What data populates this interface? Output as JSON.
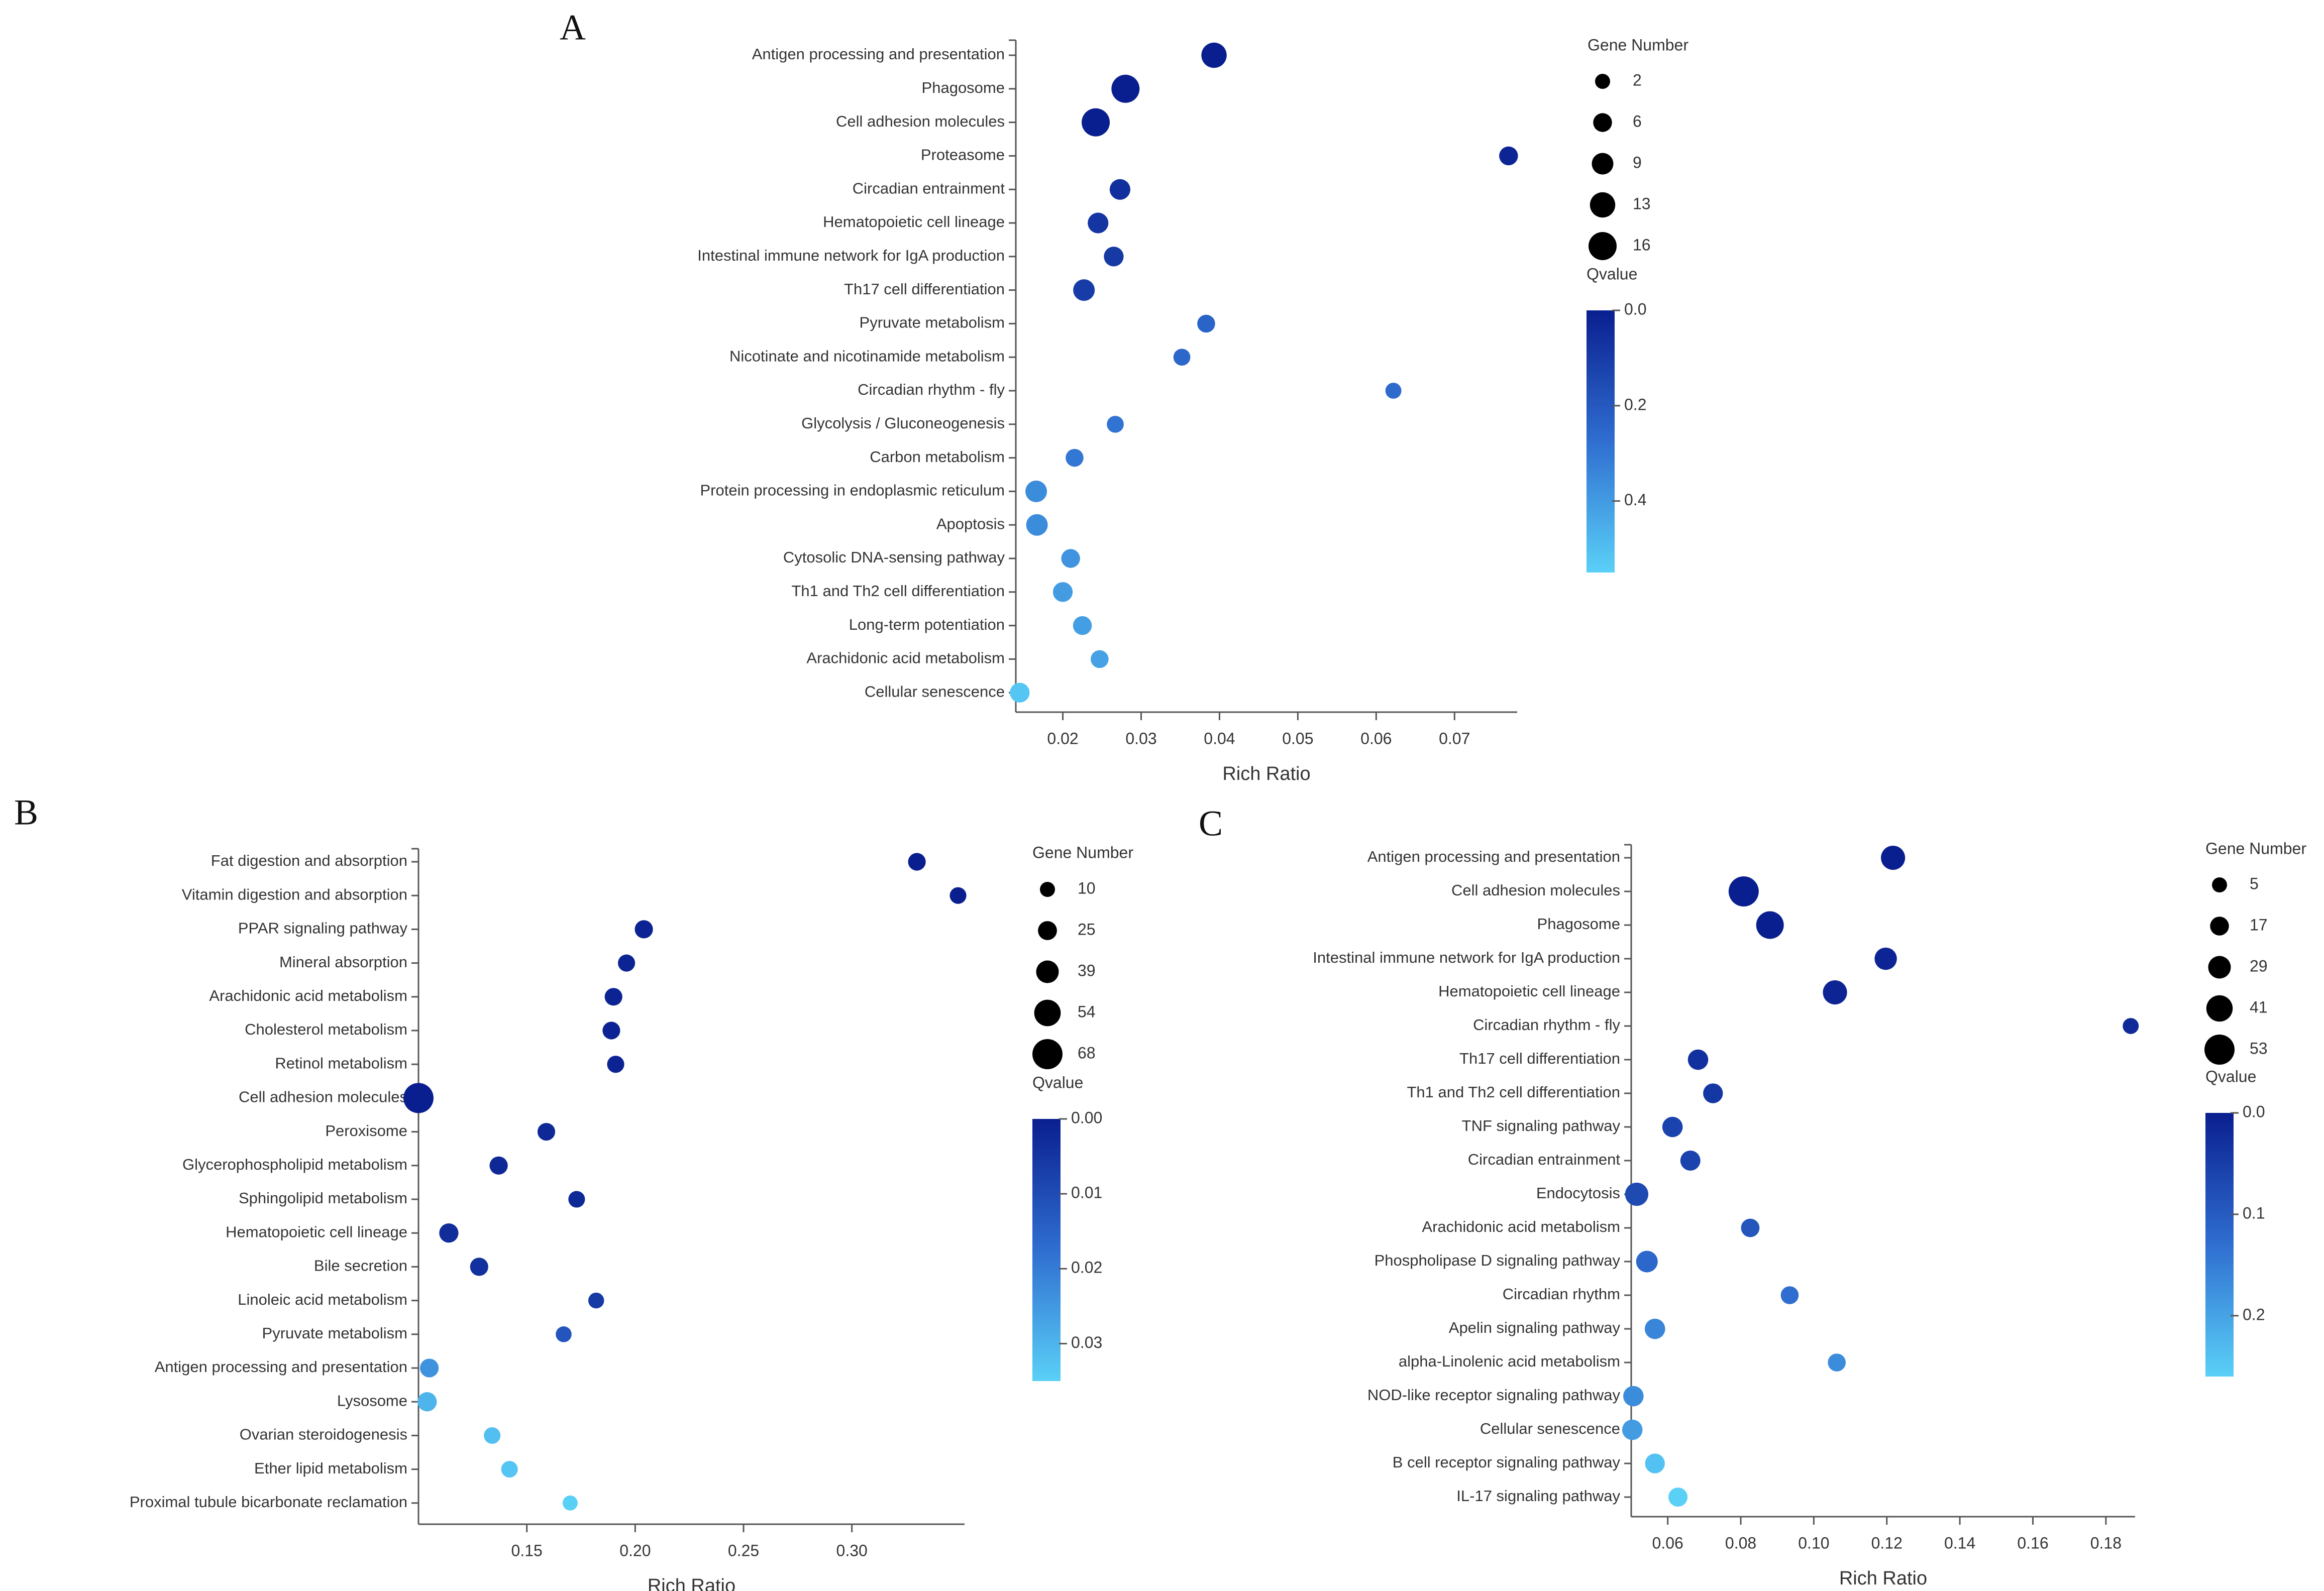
{
  "colors": {
    "low_q": "#0a1f8f",
    "mid_q": "#2f6ed0",
    "high_q": "#5ad0f7",
    "text": "#333333",
    "axis": "#555555",
    "size_legend_dot": "#000000"
  },
  "chart_data": [
    {
      "panel": "A",
      "type": "scatter",
      "title": "",
      "xlabel": "Rich Ratio",
      "ylabel": "",
      "xlim": [
        0.014,
        0.078
      ],
      "xticks": [
        0.02,
        0.03,
        0.04,
        0.05,
        0.06,
        0.07
      ],
      "xtick_labels": [
        "0.02",
        "0.03",
        "0.04",
        "0.05",
        "0.06",
        "0.07"
      ],
      "size_legend": {
        "title": "Gene Number",
        "values": [
          2,
          6,
          9,
          13,
          16
        ],
        "labels": [
          "2",
          "6",
          "9",
          "13",
          "16"
        ]
      },
      "color_legend": {
        "title": "Qvalue",
        "min": 0.0,
        "max": 0.55,
        "ticks": [
          0.0,
          0.2,
          0.4
        ],
        "tick_labels": [
          "0.0",
          "0.2",
          "0.4"
        ]
      },
      "points": [
        {
          "category": "Antigen processing and presentation",
          "x": 0.0393,
          "size": 13,
          "q": 0.0
        },
        {
          "category": "Phagosome",
          "x": 0.028,
          "size": 16,
          "q": 0.0
        },
        {
          "category": "Cell adhesion molecules",
          "x": 0.0242,
          "size": 16,
          "q": 0.0
        },
        {
          "category": "Proteasome",
          "x": 0.0769,
          "size": 6,
          "q": 0.02
        },
        {
          "category": "Circadian entrainment",
          "x": 0.0273,
          "size": 8,
          "q": 0.06
        },
        {
          "category": "Hematopoietic cell lineage",
          "x": 0.0245,
          "size": 8,
          "q": 0.08
        },
        {
          "category": "Intestinal immune network for IgA production",
          "x": 0.0265,
          "size": 7,
          "q": 0.09
        },
        {
          "category": "Th17 cell differentiation",
          "x": 0.0227,
          "size": 9,
          "q": 0.1
        },
        {
          "category": "Pyruvate metabolism",
          "x": 0.0383,
          "size": 5,
          "q": 0.24
        },
        {
          "category": "Nicotinate and nicotinamide metabolism",
          "x": 0.0352,
          "size": 4,
          "q": 0.25
        },
        {
          "category": "Circadian rhythm - fly",
          "x": 0.0622,
          "size": 3,
          "q": 0.26
        },
        {
          "category": "Glycolysis / Gluconeogenesis",
          "x": 0.0267,
          "size": 4,
          "q": 0.29
        },
        {
          "category": "Carbon metabolism",
          "x": 0.0215,
          "size": 5,
          "q": 0.3
        },
        {
          "category": "Protein processing in endoplasmic reticulum",
          "x": 0.0166,
          "size": 9,
          "q": 0.36
        },
        {
          "category": "Apoptosis",
          "x": 0.0167,
          "size": 9,
          "q": 0.36
        },
        {
          "category": "Cytosolic DNA-sensing pathway",
          "x": 0.021,
          "size": 6,
          "q": 0.38
        },
        {
          "category": "Th1 and Th2 cell differentiation",
          "x": 0.02,
          "size": 7,
          "q": 0.4
        },
        {
          "category": "Long-term potentiation",
          "x": 0.0225,
          "size": 6,
          "q": 0.41
        },
        {
          "category": "Arachidonic acid metabolism",
          "x": 0.0247,
          "size": 5,
          "q": 0.42
        },
        {
          "category": "Cellular senescence",
          "x": 0.0145,
          "size": 7,
          "q": 0.52
        }
      ]
    },
    {
      "panel": "B",
      "type": "scatter",
      "title": "",
      "xlabel": "Rich Ratio",
      "ylabel": "",
      "xlim": [
        0.1,
        0.352
      ],
      "xticks": [
        0.15,
        0.2,
        0.25,
        0.3
      ],
      "xtick_labels": [
        "0.15",
        "0.20",
        "0.25",
        "0.30"
      ],
      "size_legend": {
        "title": "Gene Number",
        "values": [
          10,
          25,
          39,
          54,
          68
        ],
        "labels": [
          "10",
          "25",
          "39",
          "54",
          "68"
        ]
      },
      "color_legend": {
        "title": "Qvalue",
        "min": 0.0,
        "max": 0.035,
        "ticks": [
          0.0,
          0.01,
          0.02,
          0.03
        ],
        "tick_labels": [
          "0.00",
          "0.01",
          "0.02",
          "0.03"
        ]
      },
      "points": [
        {
          "category": "Fat digestion and absorption",
          "x": 0.33,
          "size": 20,
          "q": 0.0
        },
        {
          "category": "Vitamin digestion and absorption",
          "x": 0.349,
          "size": 16,
          "q": 0.0
        },
        {
          "category": "PPAR signaling pathway",
          "x": 0.204,
          "size": 22,
          "q": 0.001
        },
        {
          "category": "Mineral absorption",
          "x": 0.196,
          "size": 18,
          "q": 0.001
        },
        {
          "category": "Arachidonic acid metabolism",
          "x": 0.19,
          "size": 20,
          "q": 0.001
        },
        {
          "category": "Cholesterol metabolism",
          "x": 0.189,
          "size": 20,
          "q": 0.001
        },
        {
          "category": "Retinol metabolism",
          "x": 0.191,
          "size": 18,
          "q": 0.001
        },
        {
          "category": "Cell adhesion molecules",
          "x": 0.1,
          "size": 68,
          "q": 0.0
        },
        {
          "category": "Peroxisome",
          "x": 0.159,
          "size": 20,
          "q": 0.002
        },
        {
          "category": "Glycerophospholipid metabolism",
          "x": 0.137,
          "size": 22,
          "q": 0.002
        },
        {
          "category": "Sphingolipid metabolism",
          "x": 0.173,
          "size": 16,
          "q": 0.002
        },
        {
          "category": "Hematopoietic cell lineage",
          "x": 0.114,
          "size": 26,
          "q": 0.003
        },
        {
          "category": "Bile secretion",
          "x": 0.128,
          "size": 22,
          "q": 0.004
        },
        {
          "category": "Linoleic acid metabolism",
          "x": 0.182,
          "size": 13,
          "q": 0.006
        },
        {
          "category": "Pyruvate metabolism",
          "x": 0.167,
          "size": 13,
          "q": 0.012
        },
        {
          "category": "Antigen processing and presentation",
          "x": 0.105,
          "size": 24,
          "q": 0.024
        },
        {
          "category": "Lysosome",
          "x": 0.104,
          "size": 26,
          "q": 0.03
        },
        {
          "category": "Ovarian steroidogenesis",
          "x": 0.134,
          "size": 16,
          "q": 0.032
        },
        {
          "category": "Ether lipid metabolism",
          "x": 0.142,
          "size": 16,
          "q": 0.033
        },
        {
          "category": "Proximal tubule bicarbonate reclamation",
          "x": 0.17,
          "size": 10,
          "q": 0.035
        }
      ]
    },
    {
      "panel": "C",
      "type": "scatter",
      "title": "",
      "xlabel": "Rich Ratio",
      "ylabel": "",
      "xlim": [
        0.05,
        0.188
      ],
      "xticks": [
        0.06,
        0.08,
        0.1,
        0.12,
        0.14,
        0.16,
        0.18
      ],
      "xtick_labels": [
        "0.06",
        "0.08",
        "0.10",
        "0.12",
        "0.14",
        "0.16",
        "0.18"
      ],
      "size_legend": {
        "title": "Gene Number",
        "values": [
          5,
          17,
          29,
          41,
          53
        ],
        "labels": [
          "5",
          "17",
          "29",
          "41",
          "53"
        ]
      },
      "color_legend": {
        "title": "Qvalue",
        "min": 0.0,
        "max": 0.26,
        "ticks": [
          0.0,
          0.1,
          0.2
        ],
        "tick_labels": [
          "0.0",
          "0.1",
          "0.2"
        ]
      },
      "points": [
        {
          "category": "Antigen processing and presentation",
          "x": 0.1217,
          "size": 34,
          "q": 0.0
        },
        {
          "category": "Cell adhesion molecules",
          "x": 0.0808,
          "size": 53,
          "q": 0.0
        },
        {
          "category": "Phagosome",
          "x": 0.088,
          "size": 45,
          "q": 0.0
        },
        {
          "category": "Intestinal immune network for IgA production",
          "x": 0.1197,
          "size": 28,
          "q": 0.01
        },
        {
          "category": "Hematopoietic cell lineage",
          "x": 0.1058,
          "size": 34,
          "q": 0.01
        },
        {
          "category": "Circadian rhythm - fly",
          "x": 0.1868,
          "size": 8,
          "q": 0.02
        },
        {
          "category": "Th17 cell differentiation",
          "x": 0.0683,
          "size": 22,
          "q": 0.03
        },
        {
          "category": "Th1 and Th2 cell differentiation",
          "x": 0.0724,
          "size": 20,
          "q": 0.04
        },
        {
          "category": "TNF signaling pathway",
          "x": 0.0613,
          "size": 22,
          "q": 0.06
        },
        {
          "category": "Circadian entrainment",
          "x": 0.0662,
          "size": 21,
          "q": 0.06
        },
        {
          "category": "Endocytosis",
          "x": 0.0515,
          "size": 31,
          "q": 0.07
        },
        {
          "category": "Arachidonic acid metabolism",
          "x": 0.0826,
          "size": 16,
          "q": 0.09
        },
        {
          "category": "Phospholipase D signaling pathway",
          "x": 0.0543,
          "size": 26,
          "q": 0.12
        },
        {
          "category": "Circadian rhythm",
          "x": 0.0934,
          "size": 14,
          "q": 0.13
        },
        {
          "category": "Apelin signaling pathway",
          "x": 0.0565,
          "size": 22,
          "q": 0.16
        },
        {
          "category": "alpha-Linolenic acid metabolism",
          "x": 0.1063,
          "size": 14,
          "q": 0.17
        },
        {
          "category": "NOD-like receptor signaling pathway",
          "x": 0.0506,
          "size": 22,
          "q": 0.17
        },
        {
          "category": "Cellular senescence",
          "x": 0.0503,
          "size": 22,
          "q": 0.19
        },
        {
          "category": "B cell receptor signaling pathway",
          "x": 0.0565,
          "size": 20,
          "q": 0.24
        },
        {
          "category": "IL-17 signaling pathway",
          "x": 0.0628,
          "size": 18,
          "q": 0.26
        }
      ]
    }
  ]
}
